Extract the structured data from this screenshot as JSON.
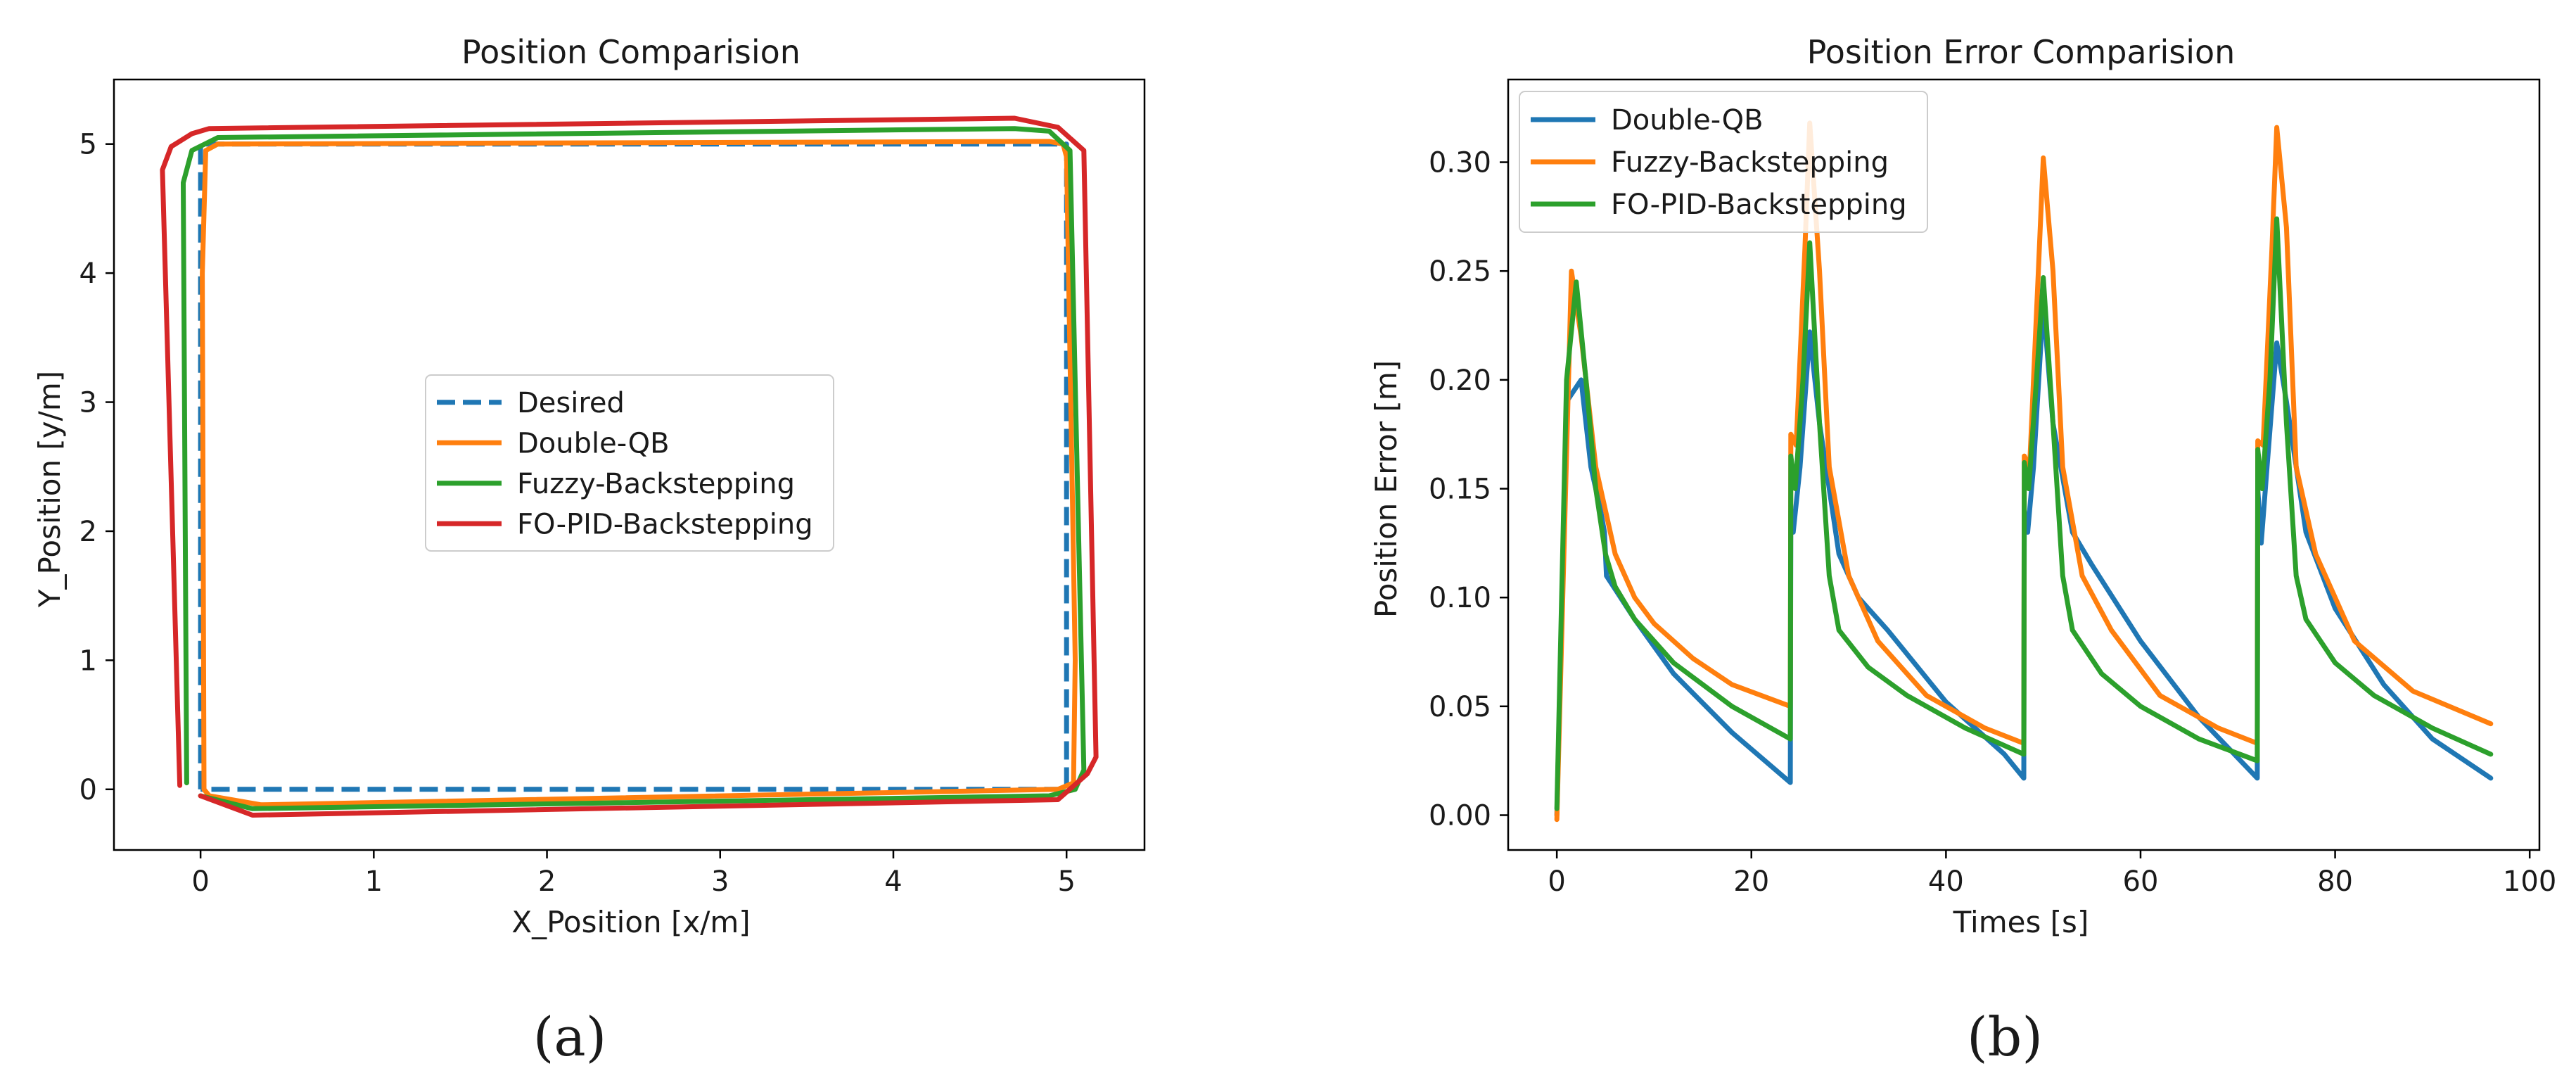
{
  "chart_data": [
    {
      "id": "a",
      "type": "line",
      "title": "Position Comparision",
      "xlabel": "X_Position [x/m]",
      "ylabel": "Y_Position [y/m]",
      "xlim": [
        -0.5,
        5.45
      ],
      "ylim": [
        -0.47,
        5.5
      ],
      "xticks": [
        0,
        1,
        2,
        3,
        4,
        5
      ],
      "yticks": [
        0,
        1,
        2,
        3,
        4,
        5
      ],
      "grid": false,
      "legend_position": "center",
      "caption": "(a)",
      "series": [
        {
          "name": "Desired",
          "color": "#1f77b4",
          "dashed": true,
          "x": [
            0,
            0,
            5,
            5,
            0
          ],
          "y": [
            0,
            5,
            5,
            0,
            0
          ]
        },
        {
          "name": "Double-QB",
          "color": "#ff7f0e",
          "dashed": false,
          "x": [
            0.02,
            0.01,
            0.03,
            0.1,
            4.9,
            4.98,
            5.0,
            5.05,
            5.04,
            4.95,
            0.35,
            0.05,
            0.02
          ],
          "y": [
            0.0,
            4.0,
            4.95,
            5.0,
            5.02,
            5.0,
            4.9,
            1.0,
            0.05,
            0.0,
            -0.12,
            -0.05,
            0.0
          ]
        },
        {
          "name": "Fuzzy-Backstepping",
          "color": "#2ca02c",
          "dashed": false,
          "x": [
            -0.08,
            -0.1,
            -0.05,
            0.1,
            4.7,
            4.9,
            5.02,
            5.1,
            5.05,
            4.9,
            0.3,
            0.0
          ],
          "y": [
            0.05,
            4.7,
            4.95,
            5.05,
            5.12,
            5.1,
            4.95,
            0.15,
            0.0,
            -0.05,
            -0.15,
            -0.05
          ]
        },
        {
          "name": "FO-PID-Backstepping",
          "color": "#d62728",
          "dashed": false,
          "x": [
            -0.12,
            -0.22,
            -0.17,
            -0.05,
            0.05,
            4.7,
            4.95,
            5.1,
            5.17,
            5.12,
            4.95,
            0.3,
            0.0
          ],
          "y": [
            0.03,
            4.8,
            4.98,
            5.08,
            5.12,
            5.2,
            5.13,
            4.95,
            0.25,
            0.12,
            -0.08,
            -0.2,
            -0.05
          ]
        }
      ]
    },
    {
      "id": "b",
      "type": "line",
      "title": "Position Error Comparision",
      "xlabel": "Times [s]",
      "ylabel": "Position Error [m]",
      "xlim": [
        -5,
        101
      ],
      "ylim": [
        -0.016,
        0.338
      ],
      "xticks": [
        0,
        20,
        40,
        60,
        80,
        100
      ],
      "xticklabels": [
        "0",
        "20",
        "40",
        "60",
        "80",
        "100"
      ],
      "yticks": [
        0,
        0.05,
        0.1,
        0.15,
        0.2,
        0.25,
        0.3
      ],
      "yticklabels": [
        "0.00",
        "0.05",
        "0.10",
        "0.15",
        "0.20",
        "0.25",
        "0.30"
      ],
      "grid": false,
      "legend_position": "upper-left",
      "caption": "(b)",
      "series": [
        {
          "name": "Double-QB",
          "color": "#1f77b4",
          "x": [
            0,
            1,
            2.5,
            3.5,
            4.5,
            4.9,
            5.1,
            8,
            12,
            18,
            24,
            24.05,
            24.3,
            25,
            26,
            27,
            29,
            31,
            34,
            40,
            46,
            48,
            48.05,
            48.4,
            49,
            50,
            51,
            53,
            55,
            60,
            66,
            72,
            72.05,
            72.4,
            73,
            74,
            75,
            77,
            80,
            85,
            90,
            96
          ],
          "y": [
            0,
            0.19,
            0.2,
            0.16,
            0.14,
            0.13,
            0.11,
            0.09,
            0.065,
            0.038,
            0.015,
            0.14,
            0.13,
            0.16,
            0.222,
            0.18,
            0.12,
            0.1,
            0.085,
            0.052,
            0.028,
            0.017,
            0.14,
            0.13,
            0.16,
            0.235,
            0.18,
            0.13,
            0.115,
            0.08,
            0.045,
            0.017,
            0.15,
            0.125,
            0.16,
            0.217,
            0.19,
            0.13,
            0.095,
            0.06,
            0.035,
            0.017
          ]
        },
        {
          "name": "Fuzzy-Backstepping",
          "color": "#ff7f0e",
          "x": [
            0,
            1.5,
            2.5,
            4,
            6,
            8,
            10,
            14,
            18,
            24,
            24.05,
            24.6,
            25.5,
            26,
            27,
            28,
            30,
            33,
            38,
            44,
            48,
            48.05,
            48.6,
            49.5,
            50,
            51,
            52,
            54,
            57,
            62,
            68,
            72,
            72.05,
            72.6,
            73.5,
            74,
            75,
            76,
            78,
            82,
            88,
            96
          ],
          "y": [
            -0.002,
            0.25,
            0.22,
            0.16,
            0.12,
            0.1,
            0.088,
            0.072,
            0.06,
            0.05,
            0.175,
            0.17,
            0.26,
            0.318,
            0.25,
            0.16,
            0.11,
            0.08,
            0.055,
            0.04,
            0.033,
            0.165,
            0.16,
            0.25,
            0.302,
            0.25,
            0.16,
            0.11,
            0.085,
            0.055,
            0.04,
            0.033,
            0.172,
            0.17,
            0.26,
            0.316,
            0.27,
            0.16,
            0.12,
            0.08,
            0.057,
            0.042
          ]
        },
        {
          "name": "FO-PID-Backstepping",
          "color": "#2ca02c",
          "x": [
            0,
            1,
            2,
            3,
            4,
            5,
            6,
            8,
            12,
            18,
            24,
            24.05,
            24.5,
            25.3,
            26,
            27,
            28,
            29,
            32,
            36,
            42,
            48,
            48.05,
            48.5,
            49.3,
            50,
            51,
            52,
            53,
            56,
            60,
            66,
            72,
            72.05,
            72.5,
            73.3,
            74,
            75,
            76,
            77,
            80,
            84,
            90,
            96
          ],
          "y": [
            0.003,
            0.2,
            0.245,
            0.2,
            0.15,
            0.12,
            0.105,
            0.09,
            0.07,
            0.05,
            0.035,
            0.165,
            0.15,
            0.2,
            0.263,
            0.18,
            0.11,
            0.085,
            0.068,
            0.055,
            0.04,
            0.028,
            0.162,
            0.15,
            0.2,
            0.247,
            0.18,
            0.11,
            0.085,
            0.065,
            0.05,
            0.035,
            0.025,
            0.168,
            0.15,
            0.2,
            0.274,
            0.18,
            0.11,
            0.09,
            0.07,
            0.055,
            0.04,
            0.028
          ]
        }
      ]
    }
  ]
}
